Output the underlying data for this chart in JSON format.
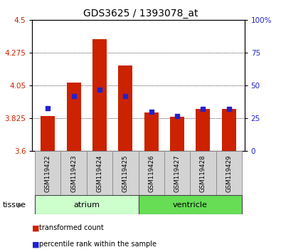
{
  "title": "GDS3625 / 1393078_at",
  "samples": [
    "GSM119422",
    "GSM119423",
    "GSM119424",
    "GSM119425",
    "GSM119426",
    "GSM119427",
    "GSM119428",
    "GSM119429"
  ],
  "red_values": [
    3.84,
    4.07,
    4.37,
    4.19,
    3.865,
    3.835,
    3.89,
    3.89
  ],
  "blue_values": [
    33,
    42,
    47,
    42,
    30,
    27,
    32,
    32
  ],
  "ymin": 3.6,
  "ymax": 4.5,
  "yticks": [
    3.6,
    3.825,
    4.05,
    4.275,
    4.5
  ],
  "y2ticks": [
    0,
    25,
    50,
    75,
    100
  ],
  "groups": [
    {
      "label": "atrium",
      "indices": [
        0,
        1,
        2,
        3
      ],
      "light_color": "#ccffcc",
      "dark_color": "#ccffcc"
    },
    {
      "label": "ventricle",
      "indices": [
        4,
        5,
        6,
        7
      ],
      "light_color": "#66ee66",
      "dark_color": "#66ee66"
    }
  ],
  "bar_color": "#cc2200",
  "point_color": "#2222cc",
  "bar_width": 0.55,
  "tick_label_color_left": "#cc2200",
  "tick_label_color_right": "#2222cc",
  "tissue_label": "tissue",
  "legend_items": [
    "transformed count",
    "percentile rank within the sample"
  ]
}
